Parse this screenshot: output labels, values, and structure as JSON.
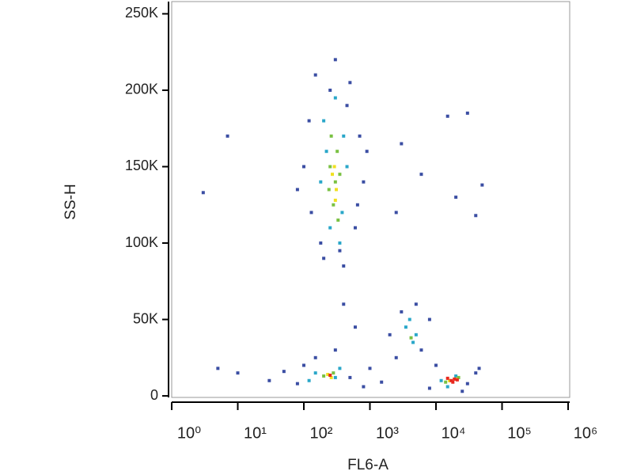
{
  "chart_data": {
    "type": "scatter",
    "x_label": "FL6-A",
    "y_label": "SS-H",
    "xscale": "log",
    "xlim": [
      1,
      1000000
    ],
    "xticks": [
      {
        "value": 1,
        "label": "10⁰"
      },
      {
        "value": 10,
        "label": "10¹"
      },
      {
        "value": 100,
        "label": "10²"
      },
      {
        "value": 1000,
        "label": "10³"
      },
      {
        "value": 10000,
        "label": "10⁴"
      },
      {
        "value": 100000,
        "label": "10⁵"
      },
      {
        "value": 1000000,
        "label": "10⁶"
      }
    ],
    "ylim": [
      -1000,
      258000
    ],
    "yticks": [
      0,
      {
        "value": 50000,
        "label": "50K"
      },
      {
        "value": 100000,
        "label": "100K"
      },
      {
        "value": 150000,
        "label": "150K"
      },
      {
        "value": 200000,
        "label": "200K"
      },
      {
        "value": 250000,
        "label": "250K"
      }
    ],
    "series": [
      {
        "color": "#3b4ea3",
        "x": [
          150,
          300,
          500,
          120,
          700,
          100,
          800,
          130,
          600,
          200,
          400,
          250,
          450,
          180,
          350,
          900,
          80,
          650,
          7,
          3,
          30000,
          50000,
          20000,
          40000,
          3000,
          6000,
          15000,
          2500,
          5,
          10,
          30,
          50,
          80,
          100,
          500,
          800,
          1000,
          1500,
          300,
          400,
          150,
          600,
          2000,
          3000,
          6000,
          8000,
          2500,
          5000,
          8000,
          30000,
          40000,
          10000,
          25000,
          45000
        ],
        "values": [
          210000,
          220000,
          205000,
          180000,
          170000,
          150000,
          140000,
          120000,
          110000,
          90000,
          85000,
          200000,
          190000,
          100000,
          95000,
          160000,
          135000,
          125000,
          170000,
          133000,
          185000,
          138000,
          130000,
          118000,
          165000,
          145000,
          183000,
          120000,
          18000,
          15000,
          10000,
          16000,
          8000,
          20000,
          12000,
          6000,
          18000,
          9000,
          30000,
          60000,
          25000,
          45000,
          40000,
          55000,
          30000,
          50000,
          25000,
          60000,
          5000,
          8000,
          15000,
          20000,
          3000,
          18000
        ]
      },
      {
        "color": "#2aa7c9",
        "x": [
          200,
          300,
          400,
          250,
          350,
          180,
          450,
          220,
          380,
          150,
          300,
          350,
          120,
          3500,
          4500,
          4000,
          5000,
          12000,
          20000,
          15000
        ],
        "values": [
          180000,
          195000,
          170000,
          110000,
          100000,
          140000,
          150000,
          160000,
          120000,
          15000,
          12000,
          18000,
          10000,
          45000,
          35000,
          50000,
          40000,
          10000,
          13000,
          6000
        ]
      },
      {
        "color": "#7ac143",
        "x": [
          250,
          300,
          280,
          320,
          260,
          330,
          240,
          350,
          200,
          280,
          4200,
          14000,
          22000
        ],
        "values": [
          150000,
          140000,
          125000,
          160000,
          170000,
          115000,
          135000,
          145000,
          13000,
          15000,
          38000,
          9000,
          12000
        ]
      },
      {
        "color": "#f0e020",
        "x": [
          290,
          310,
          270,
          300,
          230,
          260,
          16000,
          20000
        ],
        "values": [
          150000,
          135000,
          145000,
          128000,
          14000,
          12000,
          10000,
          11000
        ]
      },
      {
        "color": "#e8281e",
        "x": [
          250,
          17000,
          19000,
          15000,
          18000,
          21000
        ],
        "values": [
          13500,
          10000,
          11000,
          11500,
          9000,
          10500
        ]
      }
    ]
  }
}
